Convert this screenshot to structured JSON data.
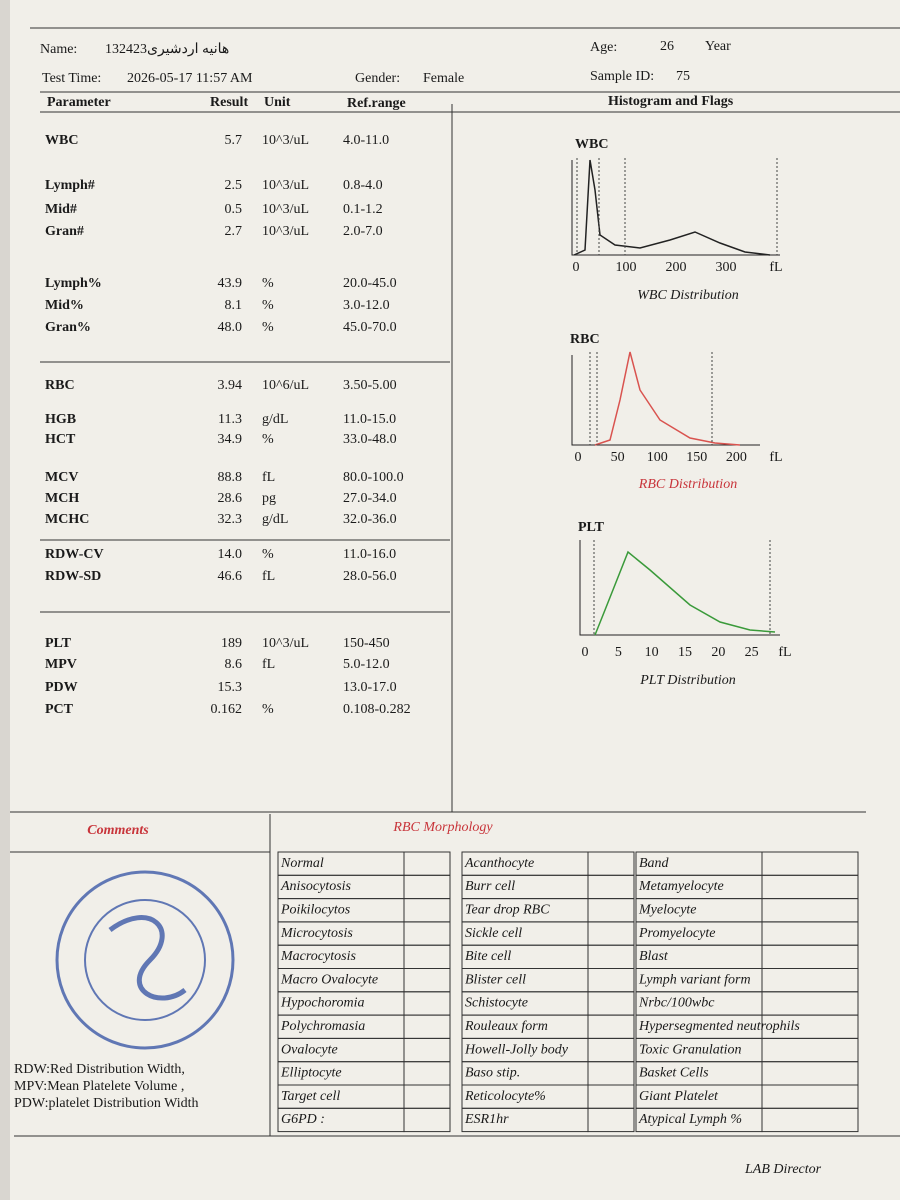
{
  "header": {
    "name_label": "Name:",
    "name": "132423هانیه اردشیری",
    "age_label": "Age:",
    "age": "26",
    "age_unit": "Year",
    "time_label": "Test Time:",
    "time": "2026-05-17 11:57 AM",
    "gender_label": "Gender:",
    "gender": "Female",
    "sample_label": "Sample ID:",
    "sample": "75"
  },
  "columns": {
    "parameter": "Parameter",
    "result": "Result",
    "unit": "Unit",
    "range": "Ref.range",
    "histogram": "Histogram and Flags"
  },
  "rows": [
    {
      "parameter": "WBC",
      "result": "5.7",
      "unit": "10^3/uL",
      "range": "4.0-11.0"
    },
    {
      "parameter": "Lymph#",
      "result": "2.5",
      "unit": "10^3/uL",
      "range": "0.8-4.0"
    },
    {
      "parameter": "Mid#",
      "result": "0.5",
      "unit": "10^3/uL",
      "range": "0.1-1.2"
    },
    {
      "parameter": "Gran#",
      "result": "2.7",
      "unit": "10^3/uL",
      "range": "2.0-7.0"
    },
    {
      "parameter": "Lymph%",
      "result": "43.9",
      "unit": "%",
      "range": "20.0-45.0"
    },
    {
      "parameter": "Mid%",
      "result": "8.1",
      "unit": "%",
      "range": "3.0-12.0"
    },
    {
      "parameter": "Gran%",
      "result": "48.0",
      "unit": "%",
      "range": "45.0-70.0"
    },
    {
      "parameter": "RBC",
      "result": "3.94",
      "unit": "10^6/uL",
      "range": "3.50-5.00"
    },
    {
      "parameter": "HGB",
      "result": "11.3",
      "unit": "g/dL",
      "range": "11.0-15.0"
    },
    {
      "parameter": "HCT",
      "result": "34.9",
      "unit": "%",
      "range": "33.0-48.0"
    },
    {
      "parameter": "MCV",
      "result": "88.8",
      "unit": "fL",
      "range": "80.0-100.0"
    },
    {
      "parameter": "MCH",
      "result": "28.6",
      "unit": "pg",
      "range": "27.0-34.0"
    },
    {
      "parameter": "MCHC",
      "result": "32.3",
      "unit": "g/dL",
      "range": "32.0-36.0"
    },
    {
      "parameter": "RDW-CV",
      "result": "14.0",
      "unit": "%",
      "range": "11.0-16.0"
    },
    {
      "parameter": "RDW-SD",
      "result": "46.6",
      "unit": "fL",
      "range": "28.0-56.0"
    },
    {
      "parameter": "PLT",
      "result": "189",
      "unit": "10^3/uL",
      "range": "150-450"
    },
    {
      "parameter": "MPV",
      "result": "8.6",
      "unit": "fL",
      "range": "5.0-12.0"
    },
    {
      "parameter": "PDW",
      "result": "15.3",
      "range": "13.0-17.0"
    },
    {
      "parameter": "PCT",
      "result": "0.162",
      "unit": "%",
      "range": "0.108-0.282"
    }
  ],
  "histograms": [
    {
      "title": "WBC",
      "ticks": [
        "0",
        "100",
        "200",
        "300",
        "fL"
      ],
      "caption": "WBC Distribution"
    },
    {
      "title": "RBC",
      "ticks": [
        "0",
        "50",
        "100",
        "150",
        "200",
        "fL"
      ],
      "caption": "RBC Distribution"
    },
    {
      "title": "PLT",
      "ticks": [
        "0",
        "5",
        "10",
        "15",
        "20",
        "25",
        "fL"
      ],
      "caption": "PLT Distribution"
    }
  ],
  "comments_title": "Comments",
  "morphology": {
    "title": "RBC Morphology",
    "columns": [
      [
        "Normal",
        "Anisocytosis",
        "Poikilocytos",
        "Microcytosis",
        "Macrocytosis",
        "Macro Ovalocyte",
        "Hypochoromia",
        "Polychromasia",
        "Ovalocyte",
        "Elliptocyte",
        "Target cell",
        "G6PD :"
      ],
      [
        "Acanthocyte",
        "Burr cell",
        "Tear drop RBC",
        "Sickle cell",
        "Bite cell",
        "Blister cell",
        "Schistocyte",
        "Rouleaux form",
        "Howell-Jolly body",
        "Baso stip.",
        "Reticolocyte%",
        "ESR1hr"
      ],
      [
        "Band",
        "Metamyelocyte",
        "Myelocyte",
        "Promyelocyte",
        "Blast",
        "Lymph variant form",
        "Nrbc/100wbc",
        "Hypersegmented neutrophils",
        "Toxic Granulation",
        "Basket Cells",
        "Giant Platelet",
        "Atypical Lymph %"
      ]
    ]
  },
  "footnotes": [
    "RDW:Red Distribution Width,",
    "MPV:Mean Platelete Volume ,",
    "PDW:platelet Distribution Width"
  ],
  "signature": "LAB Director"
}
